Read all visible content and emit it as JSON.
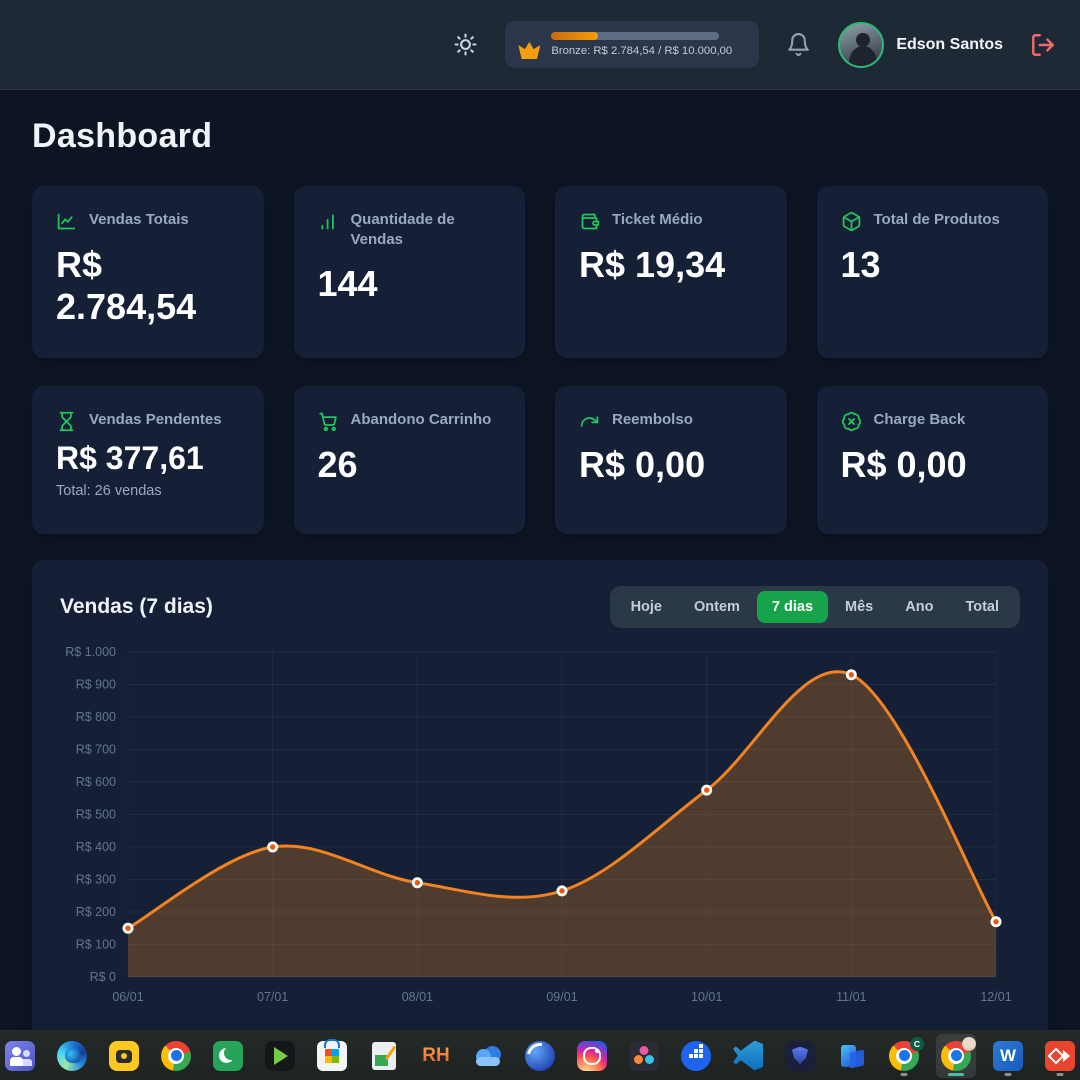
{
  "topbar": {
    "icons": [
      "sun-icon",
      "crown-icon",
      "bell-icon",
      "logout-icon"
    ],
    "progress": {
      "level": "Bronze",
      "text": "Bronze: R$ 2.784,54 / R$ 10.000,00",
      "percent": 27.8,
      "fill_color": "#f59e0b"
    },
    "user_name": "Edson Santos"
  },
  "page_title": "Dashboard",
  "accent_green": "#22c55e",
  "stats": [
    {
      "icon": "line-chart-icon",
      "label": "Vendas Totais",
      "value": "R$ 2.784,54"
    },
    {
      "icon": "bar-chart-icon",
      "label": "Quantidade de Vendas",
      "value": "144"
    },
    {
      "icon": "wallet-icon",
      "label": "Ticket Médio",
      "value": "R$ 19,34"
    },
    {
      "icon": "package-icon",
      "label": "Total de Produtos",
      "value": "13"
    },
    {
      "icon": "hourglass-icon",
      "label": "Vendas Pendentes",
      "value": "R$ 377,61",
      "subtext": "Total: 26 vendas"
    },
    {
      "icon": "cart-icon",
      "label": "Abandono Carrinho",
      "value": "26"
    },
    {
      "icon": "refund-arrow-icon",
      "label": "Reembolso",
      "value": "R$ 0,00"
    },
    {
      "icon": "chargeback-x-icon",
      "label": "Charge Back",
      "value": "R$ 0,00"
    }
  ],
  "sales_chart": {
    "title": "Vendas (7 dias)",
    "tabs": [
      {
        "label": "Hoje",
        "active": false
      },
      {
        "label": "Ontem",
        "active": false
      },
      {
        "label": "7 dias",
        "active": true
      },
      {
        "label": "Mês",
        "active": false
      },
      {
        "label": "Ano",
        "active": false
      },
      {
        "label": "Total",
        "active": false
      }
    ],
    "active_tab": "7 dias",
    "active_tab_color": "#16a34a"
  },
  "chart_data": {
    "type": "area",
    "title": "Vendas (7 dias)",
    "x": [
      "06/01",
      "07/01",
      "08/01",
      "09/01",
      "10/01",
      "11/01",
      "12/01"
    ],
    "series": [
      {
        "name": "Vendas",
        "values": [
          150,
          400,
          290,
          265,
          575,
          930,
          170
        ]
      }
    ],
    "ylim": [
      0,
      1000
    ],
    "ytick_step": 100,
    "ytick_labels": [
      "R$ 0",
      "R$ 100",
      "R$ 200",
      "R$ 300",
      "R$ 400",
      "R$ 500",
      "R$ 600",
      "R$ 700",
      "R$ 800",
      "R$ 900",
      "R$ 1.000"
    ],
    "grid": true,
    "legend": "none",
    "line_color": "#f28321",
    "fill_color": "rgba(240,132,28,0.27)",
    "point_ring_color": "#ffffff",
    "point_core_color": "#e8590c",
    "axis_label_color": "#64748b"
  },
  "taskbar": {
    "items": [
      "microsoft-teams",
      "microsoft-edge",
      "camera-app",
      "google-chrome",
      "crescent-app",
      "media-player-app",
      "microsoft-store",
      "notes-app",
      "rh-app",
      "cloud-app",
      "globe-app",
      "instagram",
      "davinci-resolve",
      "docker",
      "vscode",
      "security-shield-app",
      "phone-link",
      "chrome-profile-c",
      "chrome-profile-active",
      "microsoft-word",
      "deploy-app"
    ],
    "active_item": "chrome-profile-active",
    "glyphs": {
      "rh": "RH",
      "word": "W",
      "chrome_badge": "C"
    }
  }
}
